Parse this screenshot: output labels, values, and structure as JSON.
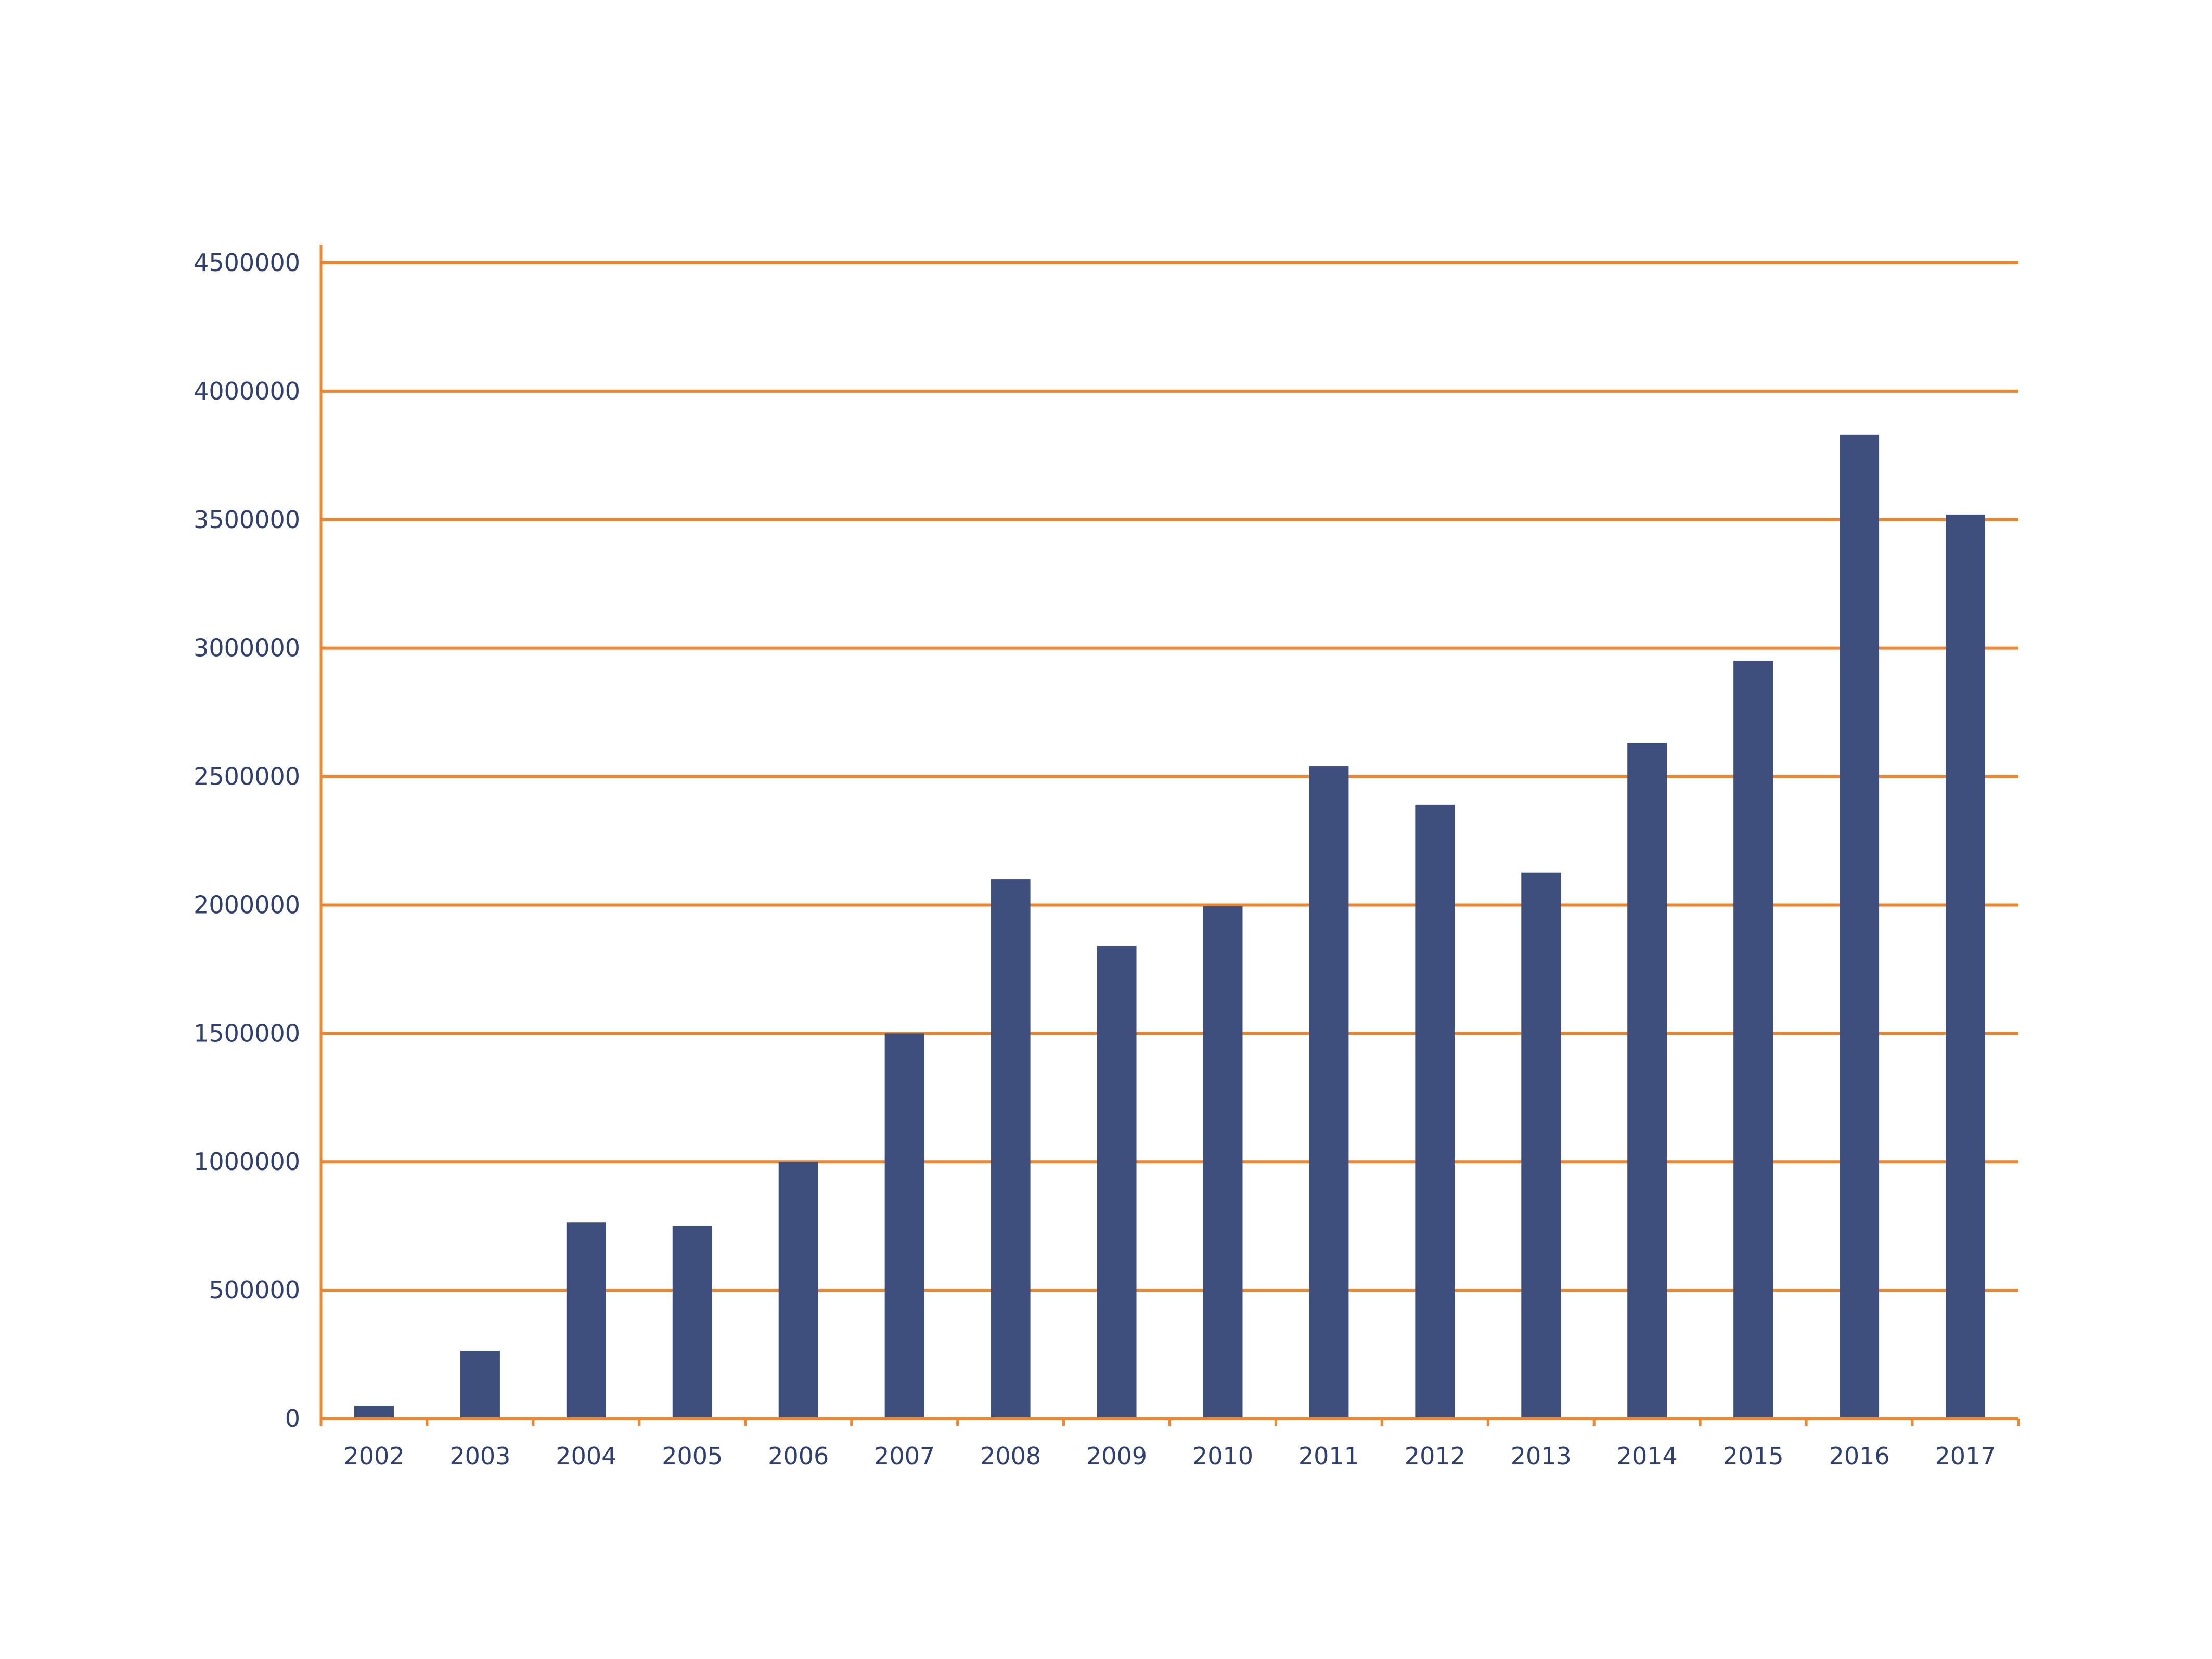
{
  "chart_data": {
    "type": "bar",
    "title": "",
    "xlabel": "",
    "ylabel": "",
    "categories": [
      "2002",
      "2003",
      "2004",
      "2005",
      "2006",
      "2007",
      "2008",
      "2009",
      "2010",
      "2011",
      "2012",
      "2013",
      "2014",
      "2015",
      "2016",
      "2017"
    ],
    "values": [
      50000,
      265000,
      765000,
      750000,
      1000000,
      1500000,
      2100000,
      1840000,
      1995000,
      2540000,
      2390000,
      2125000,
      2630000,
      2950000,
      3830000,
      3520000
    ],
    "ylim": [
      0,
      4500000
    ],
    "yticks": [
      0,
      500000,
      1000000,
      1500000,
      2000000,
      2500000,
      3000000,
      3500000,
      4000000,
      4500000
    ],
    "ytick_labels": [
      "0",
      "500000",
      "1000000",
      "1500000",
      "2000000",
      "2500000",
      "3000000",
      "3500000",
      "4000000",
      "4500000"
    ],
    "grid": true,
    "legend": "none",
    "colors": {
      "bar": "#3e4f7e",
      "grid": "#f0862b",
      "axis": "#f0862b",
      "text": "#2e3f74"
    }
  }
}
